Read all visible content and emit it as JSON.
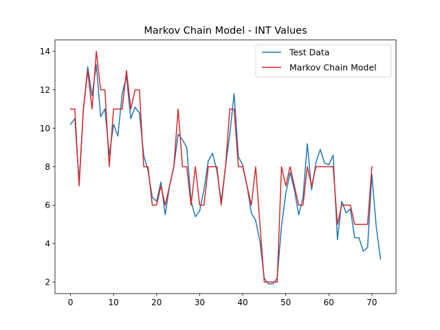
{
  "chart_data": {
    "type": "line",
    "title": "Markov Chain Model - INT Values",
    "xlabel": "",
    "ylabel": "",
    "xlim": [
      -3.6,
      75.6
    ],
    "ylim": [
      1.4,
      14.6
    ],
    "xticks": [
      0,
      10,
      20,
      30,
      40,
      50,
      60,
      70
    ],
    "yticks": [
      2,
      4,
      6,
      8,
      10,
      12,
      14
    ],
    "grid": false,
    "legend_position": "top-right",
    "series": [
      {
        "name": "Test Data",
        "color": "#1f77b4",
        "x": [
          0,
          1,
          2,
          3,
          4,
          5,
          6,
          7,
          8,
          9,
          10,
          11,
          12,
          13,
          14,
          15,
          16,
          17,
          18,
          19,
          20,
          21,
          22,
          23,
          24,
          25,
          26,
          27,
          28,
          29,
          30,
          31,
          32,
          33,
          34,
          35,
          36,
          37,
          38,
          39,
          40,
          41,
          42,
          43,
          44,
          45,
          46,
          47,
          48,
          49,
          50,
          51,
          52,
          53,
          54,
          55,
          56,
          57,
          58,
          59,
          60,
          61,
          62,
          63,
          64,
          65,
          66,
          67,
          68,
          69,
          70,
          71,
          72
        ],
        "values": [
          10.2,
          10.5,
          7.2,
          11.0,
          13.2,
          11.7,
          13.3,
          10.6,
          11.0,
          8.6,
          10.2,
          9.6,
          11.8,
          12.7,
          10.5,
          11.1,
          10.8,
          8.6,
          7.8,
          6.4,
          6.2,
          7.2,
          5.5,
          7.0,
          8.0,
          9.7,
          9.4,
          9.0,
          6.2,
          5.4,
          5.7,
          6.8,
          8.3,
          8.7,
          7.8,
          6.2,
          8.0,
          9.7,
          11.8,
          8.5,
          8.1,
          7.0,
          5.6,
          5.2,
          4.1,
          2.2,
          1.9,
          1.9,
          2.2,
          4.9,
          6.6,
          7.7,
          6.8,
          5.5,
          6.4,
          9.2,
          6.8,
          8.2,
          8.9,
          8.2,
          8.1,
          8.6,
          4.2,
          6.2,
          5.6,
          5.8,
          4.3,
          4.3,
          3.6,
          3.8,
          7.6,
          4.9,
          3.2
        ]
      },
      {
        "name": "Markov Chain Model",
        "color": "#d62728",
        "x": [
          0,
          1,
          2,
          3,
          4,
          5,
          6,
          7,
          8,
          9,
          10,
          11,
          12,
          13,
          14,
          15,
          16,
          17,
          18,
          19,
          20,
          21,
          22,
          23,
          24,
          25,
          26,
          27,
          28,
          29,
          30,
          31,
          32,
          33,
          34,
          35,
          36,
          37,
          38,
          39,
          40,
          41,
          42,
          43,
          44,
          45,
          46,
          47,
          48,
          49,
          50,
          51,
          52,
          53,
          54,
          55,
          56,
          57,
          58,
          59,
          60,
          61,
          62,
          63,
          64,
          65,
          66,
          67,
          68,
          69,
          70
        ],
        "values": [
          11,
          11,
          7,
          11,
          13,
          11,
          14,
          12,
          12,
          8,
          11,
          11,
          11,
          13,
          11,
          12,
          12,
          8,
          8,
          6,
          6,
          7,
          6,
          7,
          8,
          11,
          8,
          8,
          6,
          8,
          6,
          6,
          8,
          8,
          8,
          6,
          8,
          11,
          11,
          8,
          8,
          7,
          6,
          8,
          5,
          2,
          2,
          2,
          2,
          8,
          7,
          8,
          7,
          6,
          6,
          8,
          7,
          8,
          8,
          8,
          8,
          8,
          5,
          6,
          6,
          6,
          5,
          5,
          5,
          5,
          8
        ]
      }
    ]
  }
}
